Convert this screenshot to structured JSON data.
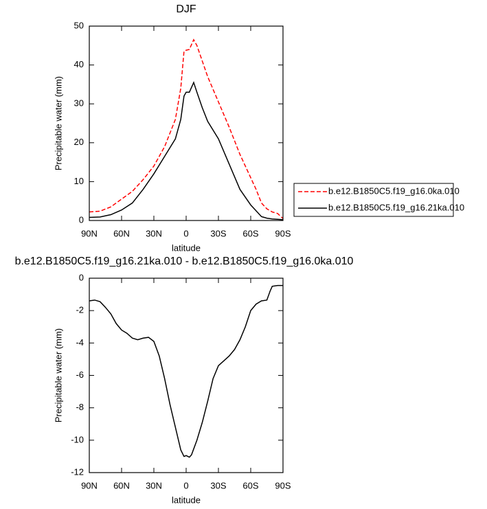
{
  "chart_data": [
    {
      "type": "line",
      "title": "DJF",
      "xlabel": "latitude",
      "ylabel": "Precipitable water (mm)",
      "xlim": [
        90,
        -90
      ],
      "xticks": [
        {
          "value": 90,
          "label": "90N"
        },
        {
          "value": 60,
          "label": "60N"
        },
        {
          "value": 30,
          "label": "30N"
        },
        0,
        {
          "value": -30,
          "label": "30S"
        },
        {
          "value": -60,
          "label": "60S"
        },
        {
          "value": -90,
          "label": "90S"
        }
      ],
      "ylim": [
        0,
        50
      ],
      "yticks": [
        0,
        10,
        20,
        30,
        40,
        50
      ],
      "legend": "outside-right",
      "x": [
        90,
        80,
        70,
        60,
        50,
        40,
        30,
        20,
        10,
        5,
        2,
        0,
        -3,
        -7,
        -10,
        -15,
        -20,
        -30,
        -40,
        -50,
        -60,
        -65,
        -70,
        -75,
        -80,
        -85,
        -90
      ],
      "series": [
        {
          "name": "b.e12.B1850C5.f19_g16.0ka.010",
          "color": "#ff0000",
          "dashed": true,
          "values": [
            2.2,
            2.4,
            3.5,
            5.5,
            7.5,
            10.5,
            14,
            19,
            26,
            34,
            43.5,
            43.8,
            44,
            46.5,
            45,
            41,
            37,
            30.5,
            24,
            17,
            11,
            8,
            4.5,
            3,
            2.2,
            1.8,
            0.5
          ]
        },
        {
          "name": "b.e12.B1850C5.f19_g16.21ka.010",
          "color": "#000000",
          "dashed": false,
          "values": [
            0.8,
            0.9,
            1.5,
            2.7,
            4.5,
            8,
            12,
            16.5,
            21,
            26,
            32,
            33,
            33,
            35.5,
            33,
            29,
            25.5,
            21,
            14.5,
            8,
            4,
            2.5,
            1,
            0.6,
            0.4,
            0.3,
            0.2
          ]
        }
      ]
    },
    {
      "type": "line",
      "title": "b.e12.B1850C5.f19_g16.21ka.010 - b.e12.B1850C5.f19_g16.0ka.010",
      "xlabel": "latitude",
      "ylabel": "Precipitable water (mm)",
      "xlim": [
        90,
        -90
      ],
      "xticks": [
        {
          "value": 90,
          "label": "90N"
        },
        {
          "value": 60,
          "label": "60N"
        },
        {
          "value": 30,
          "label": "30N"
        },
        0,
        {
          "value": -30,
          "label": "30S"
        },
        {
          "value": -60,
          "label": "60S"
        },
        {
          "value": -90,
          "label": "90S"
        }
      ],
      "ylim": [
        -12,
        0
      ],
      "yticks": [
        -12,
        -10,
        -8,
        -6,
        -4,
        -2,
        0
      ],
      "x": [
        90,
        85,
        80,
        75,
        70,
        65,
        60,
        55,
        50,
        45,
        40,
        35,
        30,
        25,
        20,
        15,
        10,
        5,
        2,
        0,
        -3,
        -5,
        -10,
        -15,
        -20,
        -25,
        -30,
        -35,
        -40,
        -45,
        -50,
        -55,
        -60,
        -65,
        -70,
        -75,
        -78,
        -80,
        -85,
        -90
      ],
      "series": [
        {
          "color": "#000000",
          "dashed": false,
          "values": [
            -1.4,
            -1.35,
            -1.45,
            -1.8,
            -2.2,
            -2.8,
            -3.2,
            -3.4,
            -3.7,
            -3.8,
            -3.7,
            -3.65,
            -3.9,
            -4.8,
            -6.2,
            -7.8,
            -9.2,
            -10.6,
            -11.0,
            -10.95,
            -11.05,
            -10.9,
            -10,
            -8.9,
            -7.6,
            -6.2,
            -5.4,
            -5.1,
            -4.8,
            -4.4,
            -3.8,
            -3.0,
            -2.0,
            -1.6,
            -1.4,
            -1.35,
            -0.8,
            -0.5,
            -0.45,
            -0.45
          ]
        }
      ]
    }
  ]
}
